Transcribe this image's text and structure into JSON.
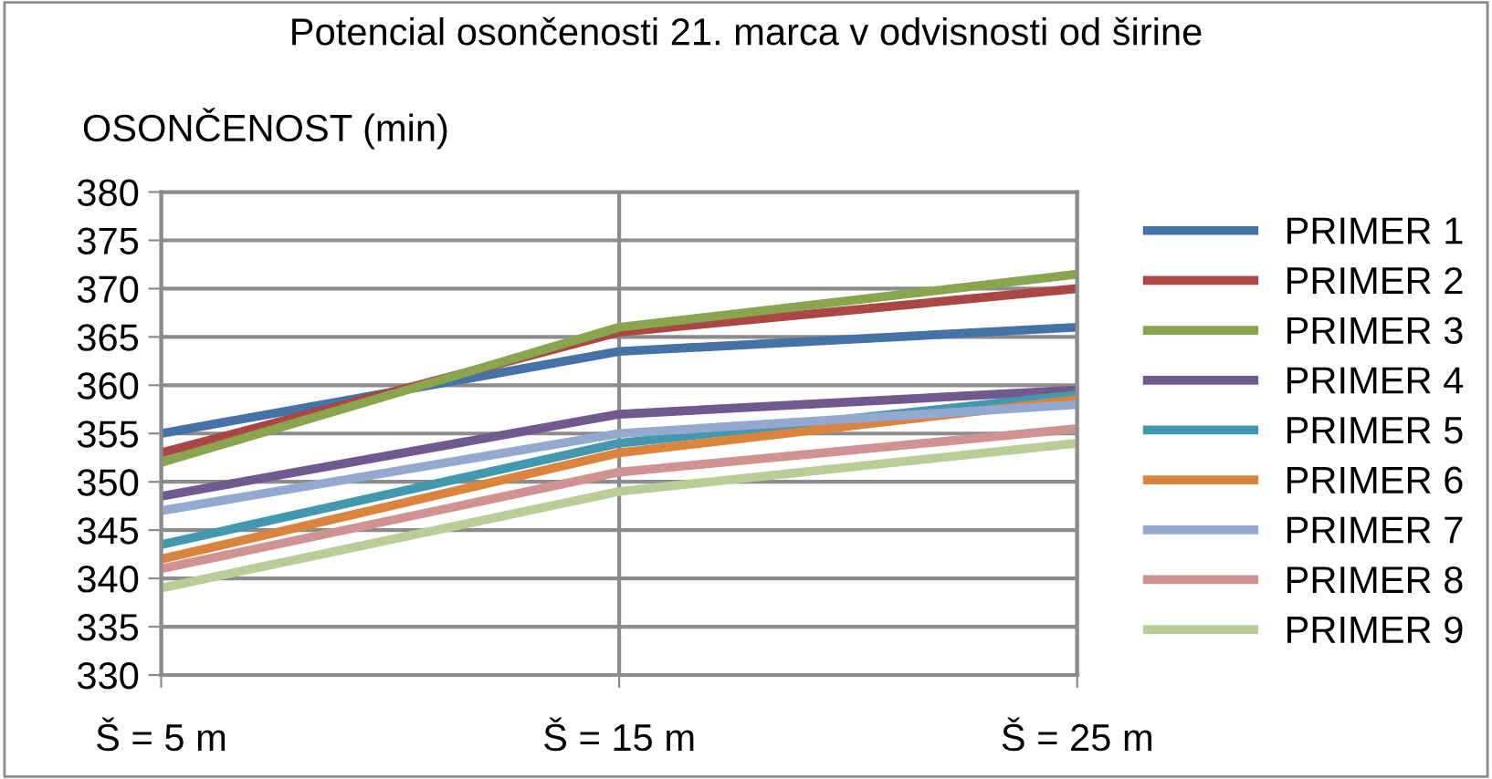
{
  "chart_data": {
    "type": "line",
    "title": "Potencial osončenosti 21. marca v odvisnosti od širine",
    "ylabel": "OSONČENOST (min)",
    "categories": [
      "Š = 5 m",
      "Š = 15 m",
      "Š = 25 m"
    ],
    "series": [
      {
        "name": "PRIMER 1",
        "color": "#4572a7",
        "values": [
          355,
          363.5,
          366
        ]
      },
      {
        "name": "PRIMER 2",
        "color": "#aa4643",
        "values": [
          353,
          365.5,
          370
        ]
      },
      {
        "name": "PRIMER 3",
        "color": "#89a54e",
        "values": [
          352,
          366,
          371.5
        ]
      },
      {
        "name": "PRIMER 4",
        "color": "#71588f",
        "values": [
          348.5,
          357,
          359.5
        ]
      },
      {
        "name": "PRIMER 5",
        "color": "#4198af",
        "values": [
          343.5,
          354,
          359
        ]
      },
      {
        "name": "PRIMER 6",
        "color": "#db843d",
        "values": [
          342,
          353,
          358.5
        ]
      },
      {
        "name": "PRIMER 7",
        "color": "#93a9cf",
        "values": [
          347,
          355,
          358
        ]
      },
      {
        "name": "PRIMER 8",
        "color": "#d19392",
        "values": [
          341,
          351,
          355.5
        ]
      },
      {
        "name": "PRIMER 9",
        "color": "#b9cd96",
        "values": [
          339,
          349,
          354
        ]
      }
    ],
    "ylim": [
      330,
      380
    ],
    "yticks": [
      330,
      335,
      340,
      345,
      350,
      355,
      360,
      365,
      370,
      375,
      380
    ],
    "grid": true,
    "legend": "right",
    "marker": "none",
    "line_style": "solid"
  }
}
